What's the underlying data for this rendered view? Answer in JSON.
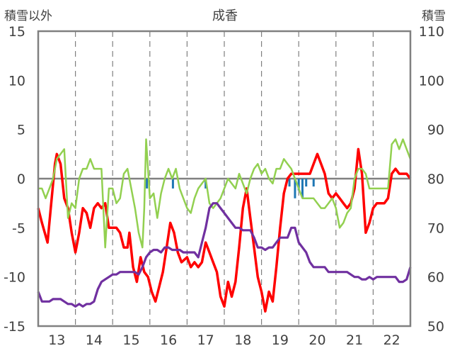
{
  "chart_data": {
    "type": "line",
    "title": "成香",
    "y_left_label": "積雪以外",
    "y_right_label": "積雪",
    "y_left_lim": [
      -15,
      15
    ],
    "y_left_ticks": [
      15,
      10,
      5,
      0,
      -5,
      -10,
      -15
    ],
    "y_right_lim": [
      50,
      110
    ],
    "y_right_ticks": [
      110,
      100,
      90,
      80,
      70,
      60,
      50
    ],
    "x_lim": [
      12.5,
      22.5
    ],
    "x_ticks": [
      13,
      14,
      15,
      16,
      17,
      18,
      19,
      20,
      21,
      22
    ],
    "grid": "dashed-vertical-at-day-boundaries",
    "colors": {
      "temperature": "#ff0000",
      "green": "#92d050",
      "purple": "#7030a0",
      "precip": "#1f77b4",
      "axis": "#808080",
      "zero_line": "#808080"
    },
    "series": [
      {
        "key": "red",
        "axis": "left",
        "points": [
          [
            12.5,
            -3.0
          ],
          [
            12.6,
            -4.5
          ],
          [
            12.75,
            -6.5
          ],
          [
            12.85,
            -2.5
          ],
          [
            12.95,
            1.5
          ],
          [
            13.0,
            2.5
          ],
          [
            13.1,
            1.5
          ],
          [
            13.2,
            -2.0
          ],
          [
            13.3,
            -3.0
          ],
          [
            13.4,
            -5.5
          ],
          [
            13.5,
            -7.5
          ],
          [
            13.6,
            -5.5
          ],
          [
            13.7,
            -3.0
          ],
          [
            13.8,
            -3.5
          ],
          [
            13.9,
            -5.0
          ],
          [
            14.0,
            -3.0
          ],
          [
            14.1,
            -2.5
          ],
          [
            14.2,
            -3.0
          ],
          [
            14.3,
            -2.5
          ],
          [
            14.4,
            -5.0
          ],
          [
            14.5,
            -5.0
          ],
          [
            14.6,
            -5.0
          ],
          [
            14.7,
            -5.5
          ],
          [
            14.8,
            -7.0
          ],
          [
            14.9,
            -7.0
          ],
          [
            14.95,
            -5.5
          ],
          [
            15.05,
            -9.0
          ],
          [
            15.15,
            -10.5
          ],
          [
            15.25,
            -8.0
          ],
          [
            15.35,
            -9.5
          ],
          [
            15.45,
            -10.0
          ],
          [
            15.55,
            -11.5
          ],
          [
            15.65,
            -12.5
          ],
          [
            15.75,
            -11.0
          ],
          [
            15.85,
            -9.5
          ],
          [
            15.95,
            -7.0
          ],
          [
            16.05,
            -4.5
          ],
          [
            16.15,
            -5.5
          ],
          [
            16.25,
            -7.5
          ],
          [
            16.35,
            -8.5
          ],
          [
            16.5,
            -8.0
          ],
          [
            16.6,
            -9.0
          ],
          [
            16.7,
            -8.5
          ],
          [
            16.8,
            -9.0
          ],
          [
            16.9,
            -8.5
          ],
          [
            17.0,
            -6.5
          ],
          [
            17.1,
            -7.5
          ],
          [
            17.2,
            -8.5
          ],
          [
            17.3,
            -9.5
          ],
          [
            17.4,
            -12.0
          ],
          [
            17.5,
            -13.0
          ],
          [
            17.6,
            -10.5
          ],
          [
            17.7,
            -12.0
          ],
          [
            17.8,
            -10.5
          ],
          [
            17.9,
            -7.0
          ],
          [
            18.0,
            -3.0
          ],
          [
            18.1,
            -1.0
          ],
          [
            18.2,
            -4.0
          ],
          [
            18.3,
            -7.0
          ],
          [
            18.4,
            -10.0
          ],
          [
            18.5,
            -11.5
          ],
          [
            18.6,
            -13.5
          ],
          [
            18.7,
            -11.5
          ],
          [
            18.8,
            -12.5
          ],
          [
            18.9,
            -9.0
          ],
          [
            19.0,
            -5.0
          ],
          [
            19.1,
            -1.5
          ],
          [
            19.2,
            0.0
          ],
          [
            19.3,
            0.5
          ],
          [
            19.4,
            0.5
          ],
          [
            19.5,
            0.5
          ],
          [
            19.6,
            0.5
          ],
          [
            19.7,
            0.5
          ],
          [
            19.8,
            0.5
          ],
          [
            19.9,
            1.5
          ],
          [
            20.0,
            2.5
          ],
          [
            20.1,
            1.5
          ],
          [
            20.2,
            0.5
          ],
          [
            20.3,
            -1.5
          ],
          [
            20.4,
            -2.0
          ],
          [
            20.5,
            -1.5
          ],
          [
            20.6,
            -2.0
          ],
          [
            20.7,
            -2.5
          ],
          [
            20.8,
            -3.0
          ],
          [
            20.9,
            -2.5
          ],
          [
            21.0,
            -1.0
          ],
          [
            21.1,
            3.0
          ],
          [
            21.2,
            0.5
          ],
          [
            21.3,
            -5.5
          ],
          [
            21.4,
            -4.5
          ],
          [
            21.5,
            -3.0
          ],
          [
            21.6,
            -2.5
          ],
          [
            21.7,
            -2.5
          ],
          [
            21.8,
            -2.5
          ],
          [
            21.9,
            -2.0
          ],
          [
            22.0,
            0.5
          ],
          [
            22.1,
            1.0
          ],
          [
            22.2,
            0.5
          ],
          [
            22.3,
            0.5
          ],
          [
            22.4,
            0.5
          ],
          [
            22.5,
            0.0
          ]
        ]
      },
      {
        "key": "green",
        "axis": "left",
        "points": [
          [
            12.5,
            -1.0
          ],
          [
            12.6,
            -1.0
          ],
          [
            12.7,
            -2.0
          ],
          [
            12.8,
            -1.0
          ],
          [
            12.9,
            0.0
          ],
          [
            13.0,
            2.0
          ],
          [
            13.1,
            2.5
          ],
          [
            13.2,
            3.0
          ],
          [
            13.3,
            -4.0
          ],
          [
            13.4,
            -2.5
          ],
          [
            13.5,
            -3.0
          ],
          [
            13.6,
            0.0
          ],
          [
            13.7,
            1.0
          ],
          [
            13.8,
            1.0
          ],
          [
            13.9,
            2.0
          ],
          [
            14.0,
            1.0
          ],
          [
            14.1,
            1.0
          ],
          [
            14.2,
            1.0
          ],
          [
            14.3,
            -7.0
          ],
          [
            14.4,
            -1.0
          ],
          [
            14.5,
            -1.0
          ],
          [
            14.6,
            -2.5
          ],
          [
            14.7,
            -2.0
          ],
          [
            14.8,
            0.5
          ],
          [
            14.9,
            1.0
          ],
          [
            15.0,
            -1.0
          ],
          [
            15.1,
            -3.0
          ],
          [
            15.2,
            -5.5
          ],
          [
            15.3,
            -7.0
          ],
          [
            15.35,
            -3.0
          ],
          [
            15.4,
            4.0
          ],
          [
            15.5,
            -2.0
          ],
          [
            15.6,
            -1.5
          ],
          [
            15.7,
            -4.0
          ],
          [
            15.8,
            -1.5
          ],
          [
            15.9,
            0.0
          ],
          [
            16.0,
            1.0
          ],
          [
            16.1,
            0.0
          ],
          [
            16.2,
            1.0
          ],
          [
            16.3,
            -1.0
          ],
          [
            16.4,
            -2.0
          ],
          [
            16.5,
            -3.0
          ],
          [
            16.6,
            -3.5
          ],
          [
            16.7,
            -2.0
          ],
          [
            16.8,
            -1.0
          ],
          [
            16.9,
            -0.5
          ],
          [
            17.0,
            0.0
          ],
          [
            17.1,
            -2.5
          ],
          [
            17.2,
            -3.0
          ],
          [
            17.3,
            -2.5
          ],
          [
            17.4,
            -2.0
          ],
          [
            17.5,
            -1.0
          ],
          [
            17.6,
            0.0
          ],
          [
            17.7,
            -0.5
          ],
          [
            17.8,
            -1.0
          ],
          [
            17.9,
            0.5
          ],
          [
            18.0,
            -0.5
          ],
          [
            18.1,
            -1.5
          ],
          [
            18.2,
            0.0
          ],
          [
            18.3,
            1.0
          ],
          [
            18.4,
            1.5
          ],
          [
            18.5,
            0.5
          ],
          [
            18.6,
            1.0
          ],
          [
            18.7,
            0.0
          ],
          [
            18.8,
            -0.5
          ],
          [
            18.9,
            1.0
          ],
          [
            19.0,
            1.0
          ],
          [
            19.1,
            2.0
          ],
          [
            19.2,
            1.5
          ],
          [
            19.3,
            1.0
          ],
          [
            19.4,
            0.0
          ],
          [
            19.5,
            -1.0
          ],
          [
            19.6,
            -2.0
          ],
          [
            19.7,
            -2.0
          ],
          [
            19.8,
            -2.0
          ],
          [
            19.9,
            -2.0
          ],
          [
            20.0,
            -2.5
          ],
          [
            20.1,
            -3.0
          ],
          [
            20.2,
            -3.0
          ],
          [
            20.3,
            -2.5
          ],
          [
            20.4,
            -2.0
          ],
          [
            20.5,
            -3.0
          ],
          [
            20.6,
            -5.0
          ],
          [
            20.7,
            -4.5
          ],
          [
            20.8,
            -3.5
          ],
          [
            20.9,
            -3.0
          ],
          [
            21.0,
            0.0
          ],
          [
            21.1,
            1.0
          ],
          [
            21.2,
            1.0
          ],
          [
            21.3,
            0.5
          ],
          [
            21.4,
            -1.0
          ],
          [
            21.5,
            -1.0
          ],
          [
            21.6,
            -1.0
          ],
          [
            21.7,
            -1.0
          ],
          [
            21.8,
            -1.0
          ],
          [
            21.9,
            -1.0
          ],
          [
            22.0,
            3.5
          ],
          [
            22.1,
            4.0
          ],
          [
            22.2,
            3.0
          ],
          [
            22.3,
            4.0
          ],
          [
            22.4,
            3.0
          ],
          [
            22.5,
            2.0
          ]
        ]
      },
      {
        "key": "purple",
        "axis": "right",
        "points": [
          [
            12.5,
            57.0
          ],
          [
            12.6,
            55.0
          ],
          [
            12.7,
            55.0
          ],
          [
            12.8,
            55.0
          ],
          [
            12.9,
            55.5
          ],
          [
            13.0,
            55.5
          ],
          [
            13.1,
            55.5
          ],
          [
            13.2,
            55.0
          ],
          [
            13.3,
            54.5
          ],
          [
            13.4,
            54.5
          ],
          [
            13.5,
            54.0
          ],
          [
            13.6,
            54.5
          ],
          [
            13.7,
            54.0
          ],
          [
            13.8,
            54.5
          ],
          [
            13.9,
            54.5
          ],
          [
            14.0,
            55.0
          ],
          [
            14.1,
            57.5
          ],
          [
            14.2,
            59.0
          ],
          [
            14.3,
            59.5
          ],
          [
            14.4,
            60.0
          ],
          [
            14.5,
            60.5
          ],
          [
            14.6,
            60.5
          ],
          [
            14.7,
            61.0
          ],
          [
            14.8,
            61.0
          ],
          [
            14.9,
            61.0
          ],
          [
            15.0,
            61.0
          ],
          [
            15.1,
            61.0
          ],
          [
            15.2,
            60.5
          ],
          [
            15.3,
            62.0
          ],
          [
            15.4,
            64.0
          ],
          [
            15.5,
            65.0
          ],
          [
            15.6,
            65.5
          ],
          [
            15.7,
            65.5
          ],
          [
            15.8,
            65.0
          ],
          [
            15.9,
            66.0
          ],
          [
            16.0,
            66.0
          ],
          [
            16.1,
            65.5
          ],
          [
            16.2,
            65.5
          ],
          [
            16.3,
            65.5
          ],
          [
            16.4,
            65.0
          ],
          [
            16.5,
            65.0
          ],
          [
            16.6,
            65.0
          ],
          [
            16.7,
            65.0
          ],
          [
            16.8,
            64.0
          ],
          [
            16.9,
            67.0
          ],
          [
            17.0,
            70.0
          ],
          [
            17.1,
            74.0
          ],
          [
            17.2,
            75.0
          ],
          [
            17.3,
            75.0
          ],
          [
            17.4,
            74.0
          ],
          [
            17.5,
            73.0
          ],
          [
            17.6,
            72.0
          ],
          [
            17.7,
            71.0
          ],
          [
            17.8,
            70.0
          ],
          [
            17.9,
            70.0
          ],
          [
            18.0,
            69.5
          ],
          [
            18.1,
            69.5
          ],
          [
            18.2,
            69.5
          ],
          [
            18.3,
            68.0
          ],
          [
            18.4,
            66.0
          ],
          [
            18.5,
            66.0
          ],
          [
            18.6,
            65.5
          ],
          [
            18.7,
            66.0
          ],
          [
            18.8,
            66.0
          ],
          [
            18.9,
            67.0
          ],
          [
            19.0,
            68.0
          ],
          [
            19.1,
            68.0
          ],
          [
            19.2,
            68.0
          ],
          [
            19.3,
            70.0
          ],
          [
            19.4,
            70.0
          ],
          [
            19.5,
            67.0
          ],
          [
            19.6,
            66.0
          ],
          [
            19.7,
            65.0
          ],
          [
            19.8,
            63.0
          ],
          [
            19.9,
            62.0
          ],
          [
            20.0,
            62.0
          ],
          [
            20.1,
            62.0
          ],
          [
            20.2,
            62.0
          ],
          [
            20.3,
            61.0
          ],
          [
            20.4,
            61.0
          ],
          [
            20.5,
            61.0
          ],
          [
            20.6,
            61.0
          ],
          [
            20.7,
            61.0
          ],
          [
            20.8,
            61.0
          ],
          [
            20.9,
            60.5
          ],
          [
            21.0,
            60.0
          ],
          [
            21.1,
            60.0
          ],
          [
            21.2,
            59.5
          ],
          [
            21.3,
            59.5
          ],
          [
            21.4,
            60.0
          ],
          [
            21.5,
            59.5
          ],
          [
            21.6,
            60.0
          ],
          [
            21.7,
            60.0
          ],
          [
            21.8,
            60.0
          ],
          [
            21.9,
            60.0
          ],
          [
            22.0,
            60.0
          ],
          [
            22.1,
            60.0
          ],
          [
            22.2,
            59.0
          ],
          [
            22.3,
            59.0
          ],
          [
            22.4,
            59.5
          ],
          [
            22.5,
            62.0
          ]
        ]
      }
    ],
    "precip_bars": [
      [
        15.42,
        -1.0
      ],
      [
        16.12,
        -1.0
      ],
      [
        17.0,
        -1.0
      ],
      [
        19.25,
        -0.8
      ],
      [
        19.4,
        -2.0
      ],
      [
        19.5,
        -1.2
      ],
      [
        19.6,
        -2.0
      ],
      [
        19.7,
        -0.8
      ],
      [
        19.9,
        -0.8
      ]
    ]
  }
}
